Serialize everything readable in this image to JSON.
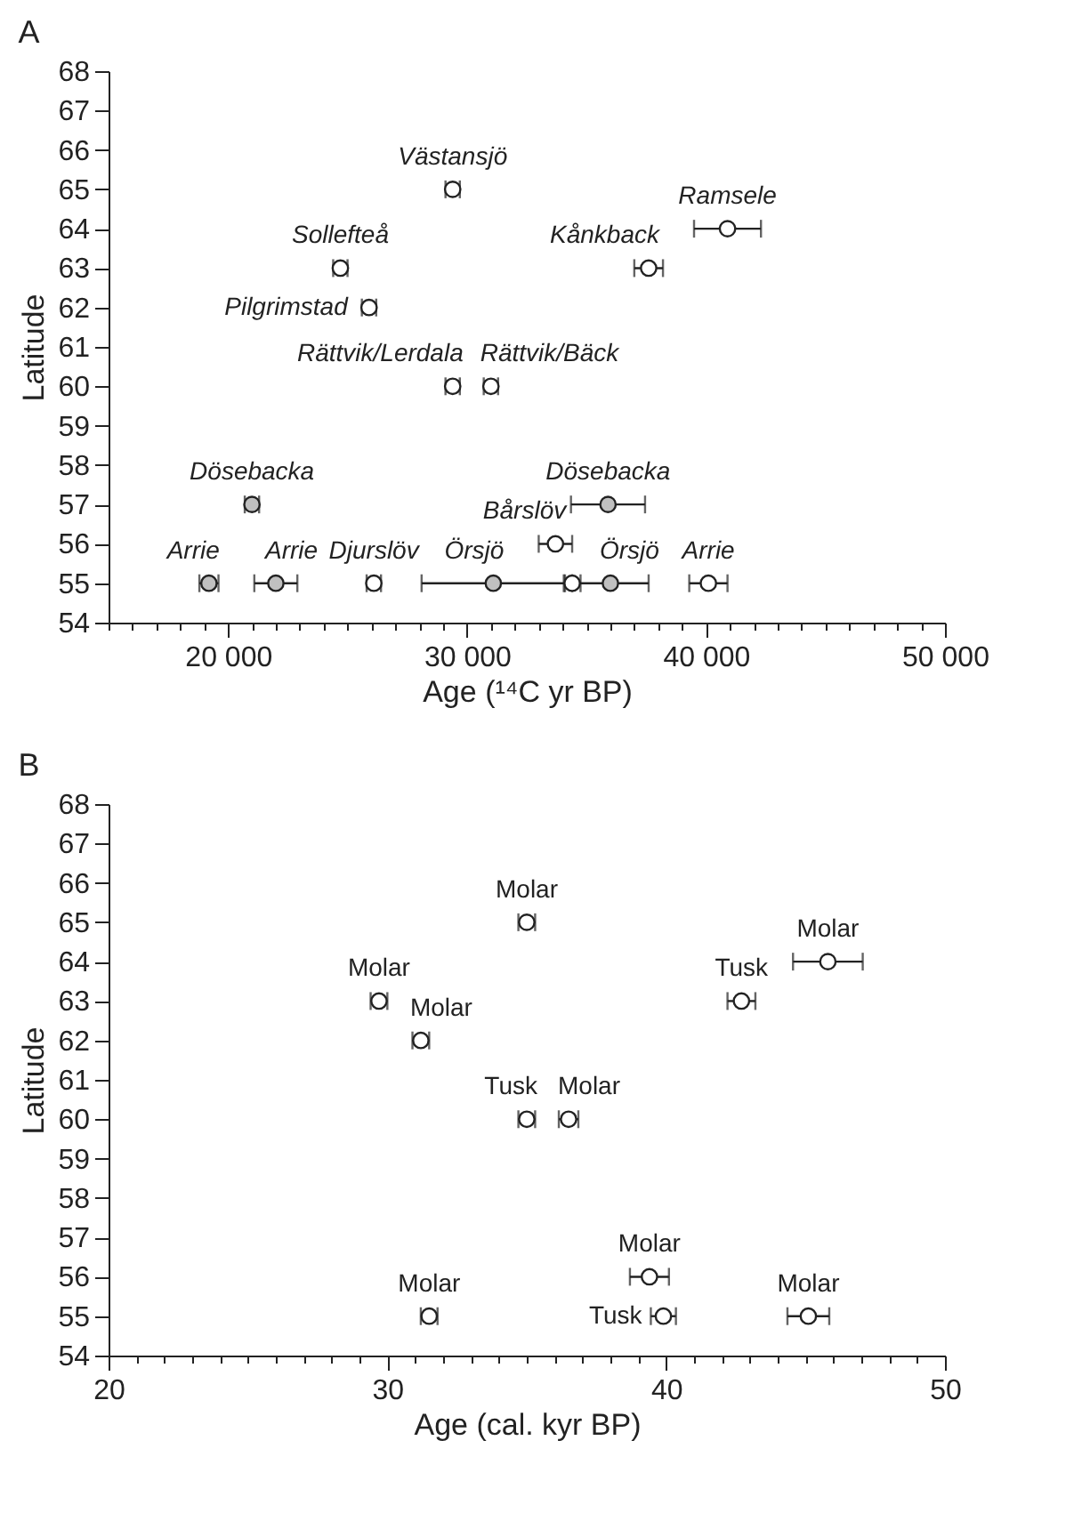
{
  "chart_data": [
    {
      "type": "scatter",
      "title": "A",
      "xlabel": "Age (¹⁴C yr BP)",
      "ylabel": "Latitude",
      "marker": "circle",
      "xlim": [
        15000,
        50000
      ],
      "xticks": [
        {
          "value": 15000,
          "label": null
        },
        {
          "value": 16000,
          "label": null
        },
        {
          "value": 17000,
          "label": null
        },
        {
          "value": 18000,
          "label": null
        },
        {
          "value": 19000,
          "label": null
        },
        {
          "value": 20000,
          "label": "20 000"
        },
        {
          "value": 21000,
          "label": null
        },
        {
          "value": 22000,
          "label": null
        },
        {
          "value": 23000,
          "label": null
        },
        {
          "value": 24000,
          "label": null
        },
        {
          "value": 25000,
          "label": null
        },
        {
          "value": 26000,
          "label": null
        },
        {
          "value": 27000,
          "label": null
        },
        {
          "value": 28000,
          "label": null
        },
        {
          "value": 29000,
          "label": null
        },
        {
          "value": 30000,
          "label": "30 000"
        },
        {
          "value": 31000,
          "label": null
        },
        {
          "value": 32000,
          "label": null
        },
        {
          "value": 33000,
          "label": null
        },
        {
          "value": 34000,
          "label": null
        },
        {
          "value": 35000,
          "label": null
        },
        {
          "value": 36000,
          "label": null
        },
        {
          "value": 37000,
          "label": null
        },
        {
          "value": 38000,
          "label": null
        },
        {
          "value": 39000,
          "label": null
        },
        {
          "value": 40000,
          "label": "40 000"
        },
        {
          "value": 41000,
          "label": null
        },
        {
          "value": 42000,
          "label": null
        },
        {
          "value": 43000,
          "label": null
        },
        {
          "value": 44000,
          "label": null
        },
        {
          "value": 45000,
          "label": null
        },
        {
          "value": 46000,
          "label": null
        },
        {
          "value": 47000,
          "label": null
        },
        {
          "value": 48000,
          "label": null
        },
        {
          "value": 49000,
          "label": null
        },
        {
          "value": 50000,
          "label": "50 000"
        }
      ],
      "ylim": [
        54,
        68
      ],
      "yticks": [
        54,
        55,
        56,
        57,
        58,
        59,
        60,
        61,
        62,
        63,
        64,
        65,
        66,
        67,
        68
      ],
      "series": [
        {
          "color": "#c0c0c0",
          "x": [
            21000,
            35900,
            19200,
            22000,
            31100,
            36000
          ],
          "values": [
            57,
            57,
            55,
            55,
            55,
            55
          ],
          "xerrors": [
            300,
            1550,
            400,
            900,
            3000,
            1600
          ]
        },
        {
          "color": "#ffffff",
          "x": [
            29400,
            24700,
            25900,
            40900,
            37600,
            29400,
            31000,
            33700,
            26100,
            34400,
            40100
          ],
          "values": [
            65,
            63,
            62,
            64,
            63,
            60,
            60,
            56,
            55,
            55,
            55
          ],
          "xerrors": [
            300,
            300,
            300,
            1400,
            600,
            300,
            300,
            700,
            300,
            350,
            800
          ]
        }
      ],
      "annotations": [
        {
          "text": "Västansjö",
          "x": 29400,
          "y": 65
        },
        {
          "text": "Sollefteå",
          "x": 24700,
          "y": 63
        },
        {
          "text": "Pilgrimstad",
          "x": 25900,
          "y": 62
        },
        {
          "text": "Ramsele",
          "x": 40900,
          "y": 64
        },
        {
          "text": "Kånkback",
          "x": 37600,
          "y": 63
        },
        {
          "text": "Rättvik/Lerdala",
          "x": 29400,
          "y": 60
        },
        {
          "text": "Rättvik/Bäck",
          "x": 31000,
          "y": 60
        },
        {
          "text": "Dösebacka",
          "x": 21000,
          "y": 57
        },
        {
          "text": "Dösebacka",
          "x": 35900,
          "y": 57
        },
        {
          "text": "Bårslöv",
          "x": 33700,
          "y": 56
        },
        {
          "text": "Arrie",
          "x": 19200,
          "y": 55
        },
        {
          "text": "Arrie",
          "x": 22000,
          "y": 55
        },
        {
          "text": "Djurslöv",
          "x": 26100,
          "y": 55
        },
        {
          "text": "Örsjö",
          "x": 31100,
          "y": 55
        },
        {
          "text": "Örsjö",
          "x": 36000,
          "y": 55
        },
        {
          "text": "Arrie",
          "x": 40100,
          "y": 55
        }
      ]
    },
    {
      "type": "scatter",
      "title": "B",
      "xlabel": "Age (cal. kyr BP)",
      "ylabel": "Latitude",
      "marker": "circle",
      "xlim": [
        20,
        50
      ],
      "xticks": [
        20,
        {
          "value": 21,
          "label": null
        },
        {
          "value": 22,
          "label": null
        },
        {
          "value": 23,
          "label": null
        },
        {
          "value": 24,
          "label": null
        },
        {
          "value": 25,
          "label": null
        },
        {
          "value": 26,
          "label": null
        },
        {
          "value": 27,
          "label": null
        },
        {
          "value": 28,
          "label": null
        },
        {
          "value": 29,
          "label": null
        },
        30,
        {
          "value": 31,
          "label": null
        },
        {
          "value": 32,
          "label": null
        },
        {
          "value": 33,
          "label": null
        },
        {
          "value": 34,
          "label": null
        },
        {
          "value": 35,
          "label": null
        },
        {
          "value": 36,
          "label": null
        },
        {
          "value": 37,
          "label": null
        },
        {
          "value": 38,
          "label": null
        },
        {
          "value": 39,
          "label": null
        },
        40,
        {
          "value": 41,
          "label": null
        },
        {
          "value": 42,
          "label": null
        },
        {
          "value": 43,
          "label": null
        },
        {
          "value": 44,
          "label": null
        },
        {
          "value": 45,
          "label": null
        },
        {
          "value": 46,
          "label": null
        },
        {
          "value": 47,
          "label": null
        },
        {
          "value": 48,
          "label": null
        },
        {
          "value": 49,
          "label": null
        },
        50
      ],
      "ylim": [
        54,
        68
      ],
      "yticks": [
        54,
        55,
        56,
        57,
        58,
        59,
        60,
        61,
        62,
        63,
        64,
        65,
        66,
        67,
        68
      ],
      "series": [
        {
          "color": "#ffffff",
          "x": [
            35.0,
            45.8,
            29.7,
            42.7,
            31.2,
            35.0,
            36.5,
            39.4,
            31.5,
            39.9,
            45.1
          ],
          "values": [
            65,
            64,
            63,
            63,
            62,
            60,
            60,
            56,
            55,
            55,
            55
          ],
          "xerrors": [
            0.3,
            1.25,
            0.3,
            0.5,
            0.3,
            0.3,
            0.35,
            0.7,
            0.3,
            0.45,
            0.75
          ]
        }
      ],
      "annotations": [
        {
          "text": "Molar",
          "x": 35.0,
          "y": 65
        },
        {
          "text": "Molar",
          "x": 45.8,
          "y": 64
        },
        {
          "text": "Molar",
          "x": 29.7,
          "y": 63
        },
        {
          "text": "Tusk",
          "x": 42.7,
          "y": 63
        },
        {
          "text": "Molar",
          "x": 31.2,
          "y": 62
        },
        {
          "text": "Tusk",
          "x": 35.0,
          "y": 60
        },
        {
          "text": "Molar",
          "x": 36.5,
          "y": 60
        },
        {
          "text": "Molar",
          "x": 39.4,
          "y": 56
        },
        {
          "text": "Molar",
          "x": 31.5,
          "y": 55
        },
        {
          "text": "Tusk",
          "x": 39.9,
          "y": 55
        },
        {
          "text": "Molar",
          "x": 45.1,
          "y": 55
        }
      ]
    }
  ]
}
